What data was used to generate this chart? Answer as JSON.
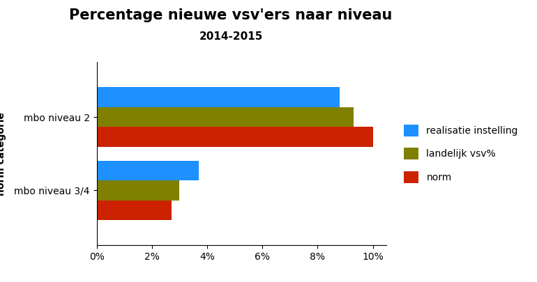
{
  "title": "Percentage nieuwe vsv'ers naar niveau",
  "subtitle": "2014-2015",
  "ylabel": "norm categorie",
  "categories": [
    "mbo niveau 3/4",
    "mbo niveau 2"
  ],
  "series": [
    {
      "label": "realisatie instelling",
      "color": "#1E90FF",
      "values": [
        3.7,
        8.8
      ]
    },
    {
      "label": "landelijk vsv%",
      "color": "#808000",
      "values": [
        3.0,
        9.3
      ]
    },
    {
      "label": "norm",
      "color": "#CC2200",
      "values": [
        2.7,
        10.0
      ]
    }
  ],
  "xlim": [
    0,
    0.105
  ],
  "xticks": [
    0,
    0.02,
    0.04,
    0.06,
    0.08,
    0.1
  ],
  "xticklabels": [
    "0%",
    "2%",
    "4%",
    "6%",
    "8%",
    "10%"
  ],
  "background_color": "#FFFFFF",
  "plot_bg_color": "#FFFFFF",
  "title_fontsize": 15,
  "subtitle_fontsize": 11,
  "legend_fontsize": 10,
  "axis_label_fontsize": 10,
  "bar_height": 0.27
}
